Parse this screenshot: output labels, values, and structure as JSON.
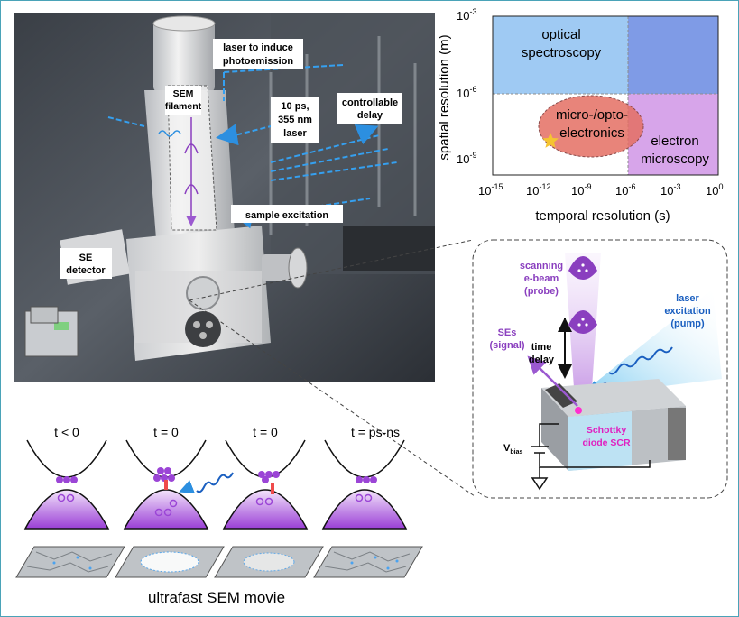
{
  "photo_labels": {
    "laser_induce": [
      "laser to induce",
      "photoemission"
    ],
    "sem_filament": [
      "SEM",
      "filament"
    ],
    "laser_spec": [
      "10 ps,",
      "355 nm",
      "laser"
    ],
    "controllable_delay": [
      "controllable",
      "delay"
    ],
    "sample_excitation": "sample excitation",
    "se_detector": [
      "SE",
      "detector"
    ]
  },
  "chart_data": {
    "type": "region-map",
    "xlabel": "temporal resolution (s)",
    "ylabel": "spatial resolution (m)",
    "x_scale": "log",
    "y_scale": "log",
    "xlim": [
      1e-15,
      1
    ],
    "ylim": [
      1e-10,
      0.001
    ],
    "x_ticks": [
      "10-15",
      "10-12",
      "10-9",
      "10-6",
      "10-3",
      "10"
    ],
    "y_ticks": [
      "10-3",
      "10-6",
      "10-9"
    ],
    "regions": [
      {
        "label": "optical spectroscopy",
        "color": "#7fb3ee"
      },
      {
        "label": "micro-/opto-electronics",
        "color": "#e86b5e"
      },
      {
        "label": "electron microscopy",
        "color": "#cfa0e8"
      }
    ],
    "marker": {
      "type": "star",
      "color": "#f5c431"
    }
  },
  "chart_text": {
    "region_optical": [
      "optical",
      "spectroscopy"
    ],
    "region_micro": [
      "micro-/opto-",
      "electronics"
    ],
    "region_electron": [
      "electron",
      "microscopy"
    ],
    "x_tick_bases": [
      "10",
      "10",
      "10",
      "10",
      "10",
      "10"
    ],
    "x_tick_exps": [
      "-15",
      "-12",
      "-9",
      "-6",
      "-3",
      "0"
    ],
    "y_tick_bases": [
      "10",
      "10",
      "10"
    ],
    "y_tick_exps": [
      "-3",
      "-6",
      "-9"
    ],
    "x_tick_last": "10",
    "x_tick_last_exp": "0"
  },
  "schematic": {
    "scanning_ebeam": [
      "scanning",
      "e-beam",
      "(probe)"
    ],
    "laser_excitation": [
      "laser",
      "excitation",
      "(pump)"
    ],
    "ses_signal": [
      "SEs",
      "(signal)"
    ],
    "time_delay": [
      "time",
      "delay"
    ],
    "schottky": [
      "Schottky",
      "diode SCR"
    ],
    "vbias": "V",
    "vbias_sub": "bias"
  },
  "movie": {
    "frames": [
      "t < 0",
      "t = 0",
      "t = 0",
      "t = ps-ns"
    ],
    "caption": "ultrafast SEM movie"
  },
  "colors": {
    "purple": "#8a3fbf",
    "blue_beam": "#2c7be5",
    "frame_border": "#4aa3b8"
  }
}
